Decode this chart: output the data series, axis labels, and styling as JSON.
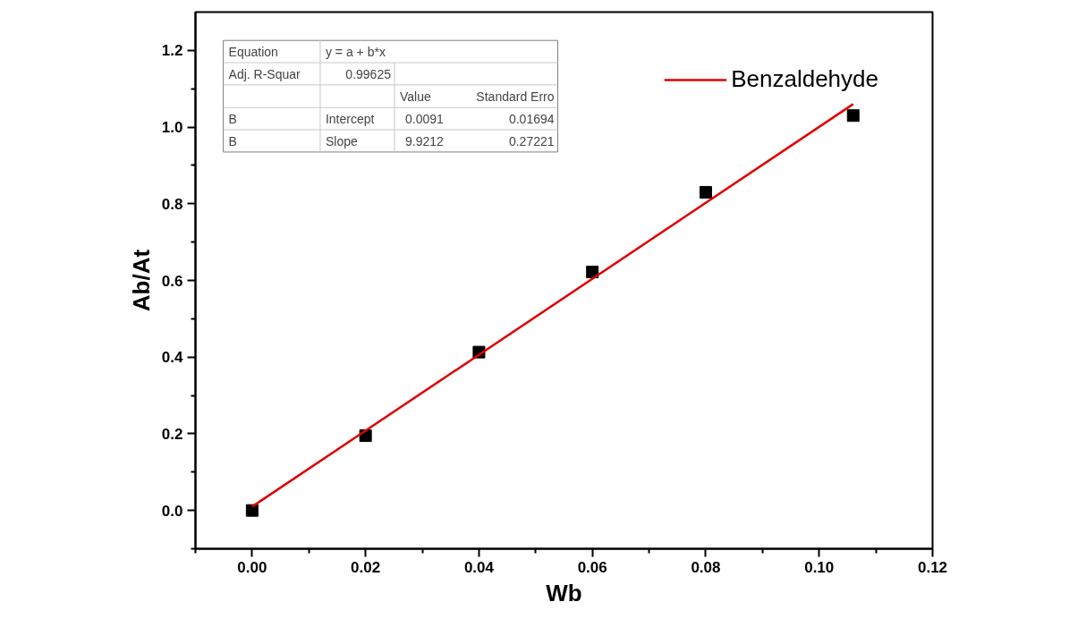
{
  "chart_data": {
    "type": "scatter",
    "xlabel": "Wb",
    "ylabel": "Ab/At",
    "xlim": [
      -0.01,
      0.12
    ],
    "ylim": [
      -0.1,
      1.3
    ],
    "xticks": [
      {
        "value": -0.01,
        "label": null
      },
      {
        "value": 0,
        "label": "0.00"
      },
      {
        "value": 0.01,
        "label": null
      },
      {
        "value": 0.02,
        "label": "0.02"
      },
      {
        "value": 0.03,
        "label": null
      },
      {
        "value": 0.04,
        "label": "0.04"
      },
      {
        "value": 0.05,
        "label": null
      },
      {
        "value": 0.06,
        "label": "0.06"
      },
      {
        "value": 0.07,
        "label": null
      },
      {
        "value": 0.08,
        "label": "0.08"
      },
      {
        "value": 0.09,
        "label": null
      },
      {
        "value": 0.1,
        "label": "0.10"
      },
      {
        "value": 0.11,
        "label": null
      },
      {
        "value": 0.12,
        "label": "0.12"
      }
    ],
    "yticks": [
      {
        "value": -0.1,
        "label": null
      },
      {
        "value": 0,
        "label": "0.0"
      },
      {
        "value": 0.1,
        "label": null
      },
      {
        "value": 0.2,
        "label": "0.2"
      },
      {
        "value": 0.3,
        "label": null
      },
      {
        "value": 0.4,
        "label": "0.4"
      },
      {
        "value": 0.5,
        "label": null
      },
      {
        "value": 0.6,
        "label": "0.6"
      },
      {
        "value": 0.7,
        "label": null
      },
      {
        "value": 0.8,
        "label": "0.8"
      },
      {
        "value": 0.9,
        "label": null
      },
      {
        "value": 1.0,
        "label": "1.0"
      },
      {
        "value": 1.1,
        "label": null
      },
      {
        "value": 1.2,
        "label": "1.2"
      }
    ],
    "grid": false,
    "legend": "top right",
    "series": [
      {
        "color": "#000000",
        "marker": "square",
        "x": [
          0.0,
          0.02,
          0.04,
          0.06,
          0.08,
          0.106
        ],
        "values": [
          0.0,
          0.195,
          0.413,
          0.622,
          0.83,
          1.03
        ]
      },
      {
        "type": "line",
        "name": "Benzaldehyde",
        "color": "#e00000",
        "marker": "none",
        "x": [
          0.0,
          0.106
        ],
        "values": [
          0.01,
          1.06
        ]
      }
    ],
    "annotations": [
      "Equation",
      "y = a + b*x",
      "Adj. R-Squar",
      "0.99625",
      "Value",
      "Standard Erro",
      "B",
      "Intercept",
      "0.0091",
      "0.01694",
      "B",
      "Slope",
      "9.9212",
      "0.27221"
    ]
  }
}
